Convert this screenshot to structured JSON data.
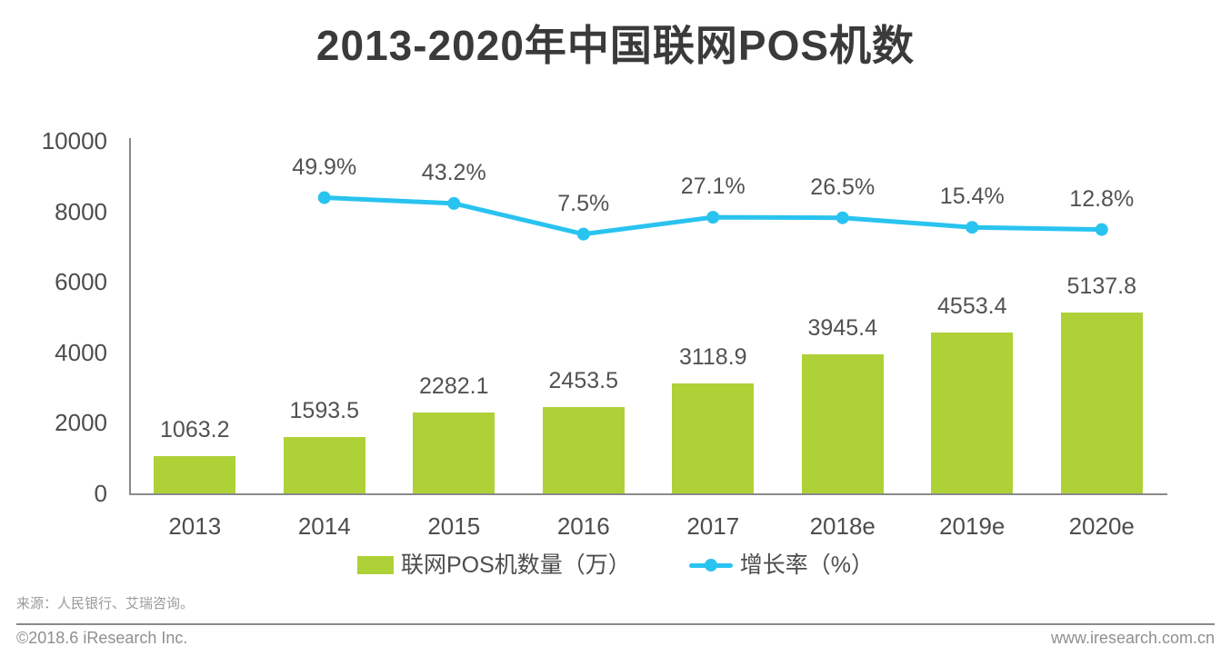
{
  "title": "2013-2020年中国联网POS机数",
  "colors": {
    "bar": "#aed138",
    "line": "#29c3f0",
    "axis": "#8a8a8a",
    "title_text": "#3a3a3a",
    "label_text": "#525252",
    "footer_text": "#8f8f8f"
  },
  "chart_data": {
    "type": "bar",
    "title": "2013-2020年中国联网POS机数",
    "categories": [
      "2013",
      "2014",
      "2015",
      "2016",
      "2017",
      "2018e",
      "2019e",
      "2020e"
    ],
    "series": [
      {
        "name": "联网POS机数量（万）",
        "type": "bar",
        "axis": "primary",
        "color": "#aed138",
        "values": [
          1063.2,
          1593.5,
          2282.1,
          2453.5,
          3118.9,
          3945.4,
          4553.4,
          5137.8
        ]
      },
      {
        "name": "增长率（%）",
        "type": "line",
        "axis": "secondary",
        "color": "#29c3f0",
        "label_suffix": "%",
        "values": [
          null,
          49.9,
          43.2,
          7.5,
          27.1,
          26.5,
          15.4,
          12.8
        ]
      }
    ],
    "xlabel": "",
    "ylabel": "",
    "ylim": [
      0,
      10000
    ],
    "yticks": [
      0,
      2000,
      4000,
      6000,
      8000,
      10000
    ],
    "y2lim": [
      -294,
      116
    ],
    "grid": false,
    "legend_position": "bottom"
  },
  "legend": [
    {
      "label": "联网POS机数量（万）",
      "swatch": "bar"
    },
    {
      "label": "增长率（%）",
      "swatch": "line"
    }
  ],
  "footer": {
    "source": "来源：人民银行、艾瑞咨询。",
    "copyright": "©2018.6 iResearch Inc.",
    "website": "www.iresearch.com.cn"
  }
}
